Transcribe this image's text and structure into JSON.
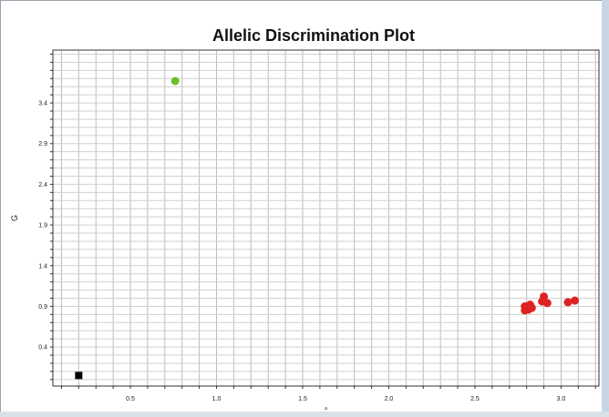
{
  "chart_data": {
    "type": "scatter",
    "title": "Allelic Discrimination Plot",
    "xlabel": "a",
    "ylabel": "G",
    "xlim": [
      0.05,
      3.22
    ],
    "ylim": [
      -0.08,
      4.05
    ],
    "x_ticks": [
      0.5,
      1.0,
      1.5,
      2.0,
      2.5,
      3.0
    ],
    "x_tick_labels": [
      "0.5",
      "1.0",
      "1.5",
      "2.0",
      "2.5",
      "3.0"
    ],
    "y_ticks": [
      0.4,
      0.9,
      1.4,
      1.9,
      2.4,
      2.9,
      3.4
    ],
    "y_tick_labels": [
      "0.4",
      "0.9",
      "1.4",
      "1.9",
      "2.4",
      "2.9",
      "3.4"
    ],
    "grid": true,
    "series": [
      {
        "marker": "circle",
        "color": "#6bbf2d",
        "points": [
          [
            0.76,
            3.67
          ]
        ]
      },
      {
        "marker": "circle",
        "color": "#dd2222",
        "points": [
          [
            2.79,
            0.9
          ],
          [
            2.79,
            0.85
          ],
          [
            2.81,
            0.86
          ],
          [
            2.82,
            0.92
          ],
          [
            2.83,
            0.88
          ],
          [
            2.89,
            0.96
          ],
          [
            2.9,
            1.02
          ],
          [
            2.92,
            0.94
          ],
          [
            3.04,
            0.95
          ],
          [
            3.08,
            0.97
          ]
        ]
      },
      {
        "marker": "square",
        "color": "#000000",
        "points": [
          [
            0.2,
            0.05
          ]
        ]
      }
    ]
  }
}
